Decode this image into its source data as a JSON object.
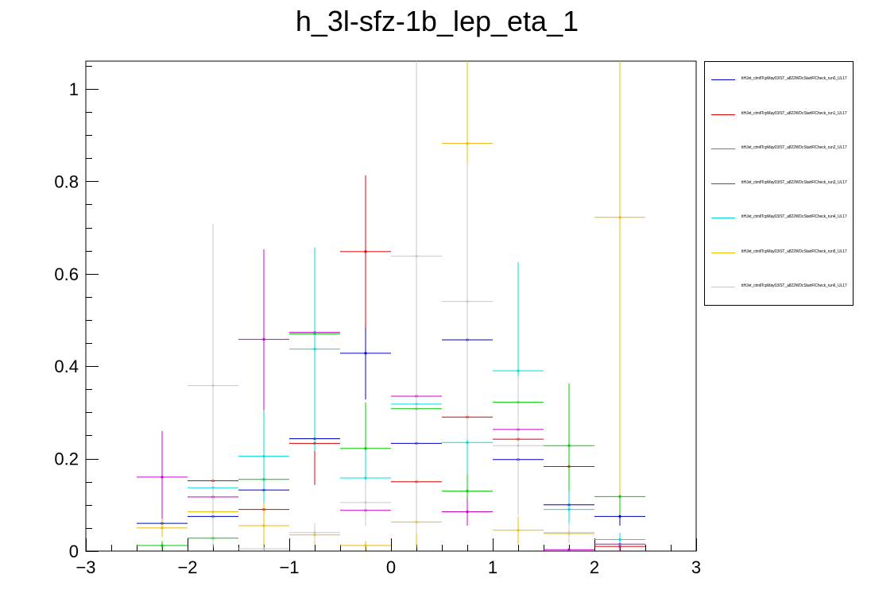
{
  "chart_data": {
    "type": "scatter",
    "title": "h_3l-sfz-1b_lep_eta_1",
    "xlabel": "",
    "ylabel": "",
    "xlim": [
      -3,
      3
    ],
    "ylim": [
      0,
      1.06
    ],
    "x_ticks": [
      "−3",
      "−2",
      "−1",
      "0",
      "1",
      "2",
      "3"
    ],
    "y_ticks": [
      "0",
      "0.2",
      "0.4",
      "0.6",
      "0.8",
      "1"
    ],
    "bin_edges": [
      -2.5,
      -2.0,
      -1.5,
      -1.0,
      -0.5,
      0.0,
      0.5,
      1.0,
      1.5,
      2.0,
      2.5
    ],
    "legend_position": "top-right, outside plot",
    "series": [
      {
        "name": "ttHJet_ctmllTcpMay03/ST_a822WDcStartFlCheck_run0_UL17",
        "color": "#0000cc",
        "values": [
          0.06,
          0.075,
          0.132,
          0.243,
          0.428,
          0.233,
          0.457,
          0.198,
          0.1,
          0.075
        ],
        "errors": [
          0.02,
          0.02,
          0.04,
          0.05,
          0.1,
          0.05,
          0.1,
          0.05,
          0.04,
          0.02
        ]
      },
      {
        "name": "ttHJet_ctmllTcpMay03/ST_a822WDcStartFlCheck_run1_UL17",
        "color": "#dd0000",
        "values": [
          0.0,
          0.152,
          0.09,
          0.233,
          0.648,
          0.15,
          0.29,
          0.242,
          0.183,
          0.01
        ],
        "errors": [
          0.0,
          0.03,
          0.03,
          0.09,
          0.165,
          0.04,
          0.07,
          0.06,
          0.05,
          0.01
        ]
      },
      {
        "name": "ttHJet_ctmllTcpMay03/ST_a822WDcStartFlCheck_run2_UL17",
        "color": "#00cc00",
        "values": [
          0.012,
          0.028,
          0.155,
          0.47,
          0.222,
          0.308,
          0.13,
          0.322,
          0.228,
          0.118
        ],
        "errors": [
          0.01,
          0.015,
          0.05,
          0.08,
          0.1,
          0.07,
          0.05,
          0.08,
          0.135,
          0.04
        ]
      },
      {
        "name": "ttHJet_ctmllTcpMay03/ST_a822WDcStartFlCheck_run3_UL17",
        "color": "#cc00cc",
        "values": [
          0.16,
          0.117,
          0.458,
          0.473,
          0.088,
          0.335,
          0.085,
          0.263,
          0.003,
          0.015
        ],
        "errors": [
          0.1,
          0.03,
          0.195,
          0.09,
          0.03,
          0.06,
          0.03,
          0.06,
          0.003,
          0.01
        ]
      },
      {
        "name": "ttHJet_ctmllTcpMay03/ST_a822WDcStartFlCheck_run4_UL17",
        "color": "#00dddd",
        "values": [
          0.0,
          0.137,
          0.205,
          0.437,
          0.158,
          0.318,
          0.235,
          0.39,
          0.09,
          0.025
        ],
        "errors": [
          0.0,
          0.04,
          0.1,
          0.22,
          0.06,
          0.08,
          0.07,
          0.235,
          0.04,
          0.015
        ]
      },
      {
        "name": "ttHJet_ctmllTcpMay03/ST_a822WDcStartFlCheck_run5_UL17",
        "color": "#eebb00",
        "values": [
          0.05,
          0.085,
          0.055,
          0.035,
          0.012,
          0.063,
          0.882,
          0.045,
          0.038,
          0.722
        ],
        "errors": [
          0.02,
          0.03,
          0.05,
          0.02,
          0.01,
          0.055,
          0.38,
          0.03,
          0.02,
          0.6
        ]
      },
      {
        "name": "ttHJet_ctmllTcpMay03/ST_a822WDcStartFlCheck_run6_UL17",
        "color": "#c8c8c8",
        "values": [
          0.0,
          0.358,
          0.005,
          0.04,
          0.105,
          0.638,
          0.54,
          0.228,
          0.04,
          0.0
        ],
        "errors": [
          0.0,
          0.35,
          0.005,
          0.02,
          0.05,
          0.6,
          0.3,
          0.15,
          0.02,
          0.0
        ]
      }
    ]
  }
}
